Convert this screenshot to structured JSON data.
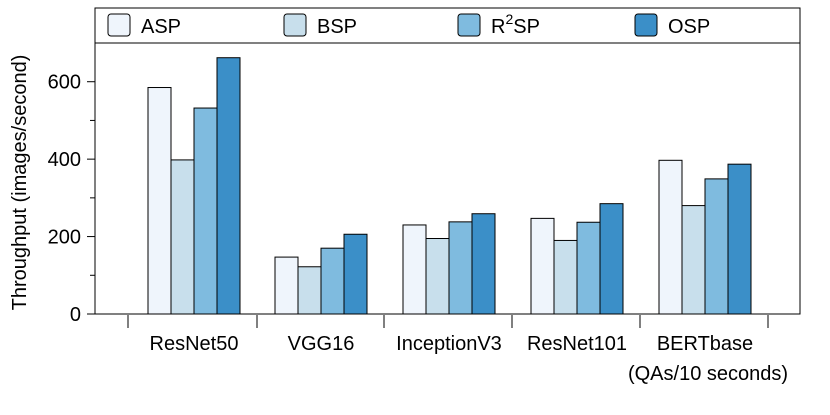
{
  "chart_data": {
    "type": "bar",
    "title": "",
    "xlabel": "",
    "ylabel": "Throughput (images/second)",
    "ylim": [
      0,
      700
    ],
    "yticks": [
      0,
      200,
      400,
      600
    ],
    "categories": [
      "ResNet50",
      "VGG16",
      "InceptionV3",
      "ResNet101",
      "BERTbase"
    ],
    "category_sublabels": [
      "",
      "",
      "",
      "",
      "(QAs/10 seconds)"
    ],
    "legend_position": "top",
    "grid": false,
    "series": [
      {
        "name": "ASP",
        "color": "#eff5fc",
        "values": [
          585,
          147,
          230,
          247,
          397
        ]
      },
      {
        "name": "BSP",
        "color": "#c8dfec",
        "values": [
          398,
          122,
          195,
          190,
          280
        ]
      },
      {
        "name": "R2SP",
        "color": "#7fbbdf",
        "values": [
          532,
          170,
          238,
          237,
          349
        ]
      },
      {
        "name": "OSP",
        "color": "#3b8fc8",
        "values": [
          662,
          206,
          259,
          285,
          387
        ]
      }
    ]
  }
}
